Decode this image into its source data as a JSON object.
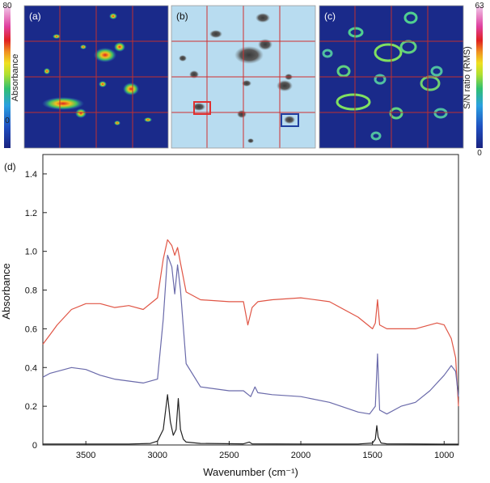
{
  "panels": {
    "a": {
      "label": "(a)"
    },
    "b": {
      "label": "(b)"
    },
    "c": {
      "label": "(c)"
    },
    "d": {
      "label": "(d)"
    }
  },
  "left_colorbar": {
    "label": "Absorbance",
    "max_label": "80",
    "min_label": "0"
  },
  "right_colorbar": {
    "label": "S/N ratio (RMS)",
    "max_label": "63",
    "min_label": "0"
  },
  "colors": {
    "map_background": "#1a2a8a",
    "grid_line": "#d03030",
    "optical_background": "#b8dcf0",
    "red_box": "#e03030",
    "blue_box": "#2040a0",
    "red_spectrum": "#e05545",
    "blue_spectrum": "#6a6aaa",
    "black_spectrum": "#222222"
  },
  "chart_data": {
    "type": "line",
    "title": "",
    "xlabel": "Wavenumber (cm⁻¹)",
    "ylabel": "Absorbance",
    "xlim": [
      3800,
      900
    ],
    "ylim": [
      0,
      1.5
    ],
    "x_ticks": [
      3500,
      3000,
      2500,
      2000,
      1500,
      1000
    ],
    "x_tick_labels": [
      "3500",
      "3000",
      "2500",
      "2000",
      "1500",
      "1000"
    ],
    "y_ticks": [
      0,
      0.2,
      0.4,
      0.6,
      0.8,
      1.0,
      1.2,
      1.4
    ],
    "y_tick_labels": [
      "0",
      "0.2",
      "0.4",
      "0.6",
      "0.8",
      "1.0",
      "1.2",
      "1.4"
    ],
    "series": [
      {
        "color": "#e05545",
        "x": [
          3800,
          3750,
          3700,
          3600,
          3500,
          3400,
          3300,
          3200,
          3100,
          3000,
          2960,
          2930,
          2900,
          2880,
          2860,
          2840,
          2800,
          2700,
          2500,
          2400,
          2370,
          2340,
          2300,
          2200,
          2000,
          1800,
          1600,
          1500,
          1480,
          1465,
          1450,
          1400,
          1200,
          1050,
          1000,
          950,
          920,
          900
        ],
        "y": [
          0.52,
          0.57,
          0.62,
          0.7,
          0.73,
          0.73,
          0.71,
          0.72,
          0.7,
          0.76,
          0.96,
          1.06,
          1.03,
          0.98,
          1.02,
          0.94,
          0.79,
          0.75,
          0.74,
          0.74,
          0.62,
          0.71,
          0.74,
          0.75,
          0.76,
          0.74,
          0.66,
          0.6,
          0.63,
          0.75,
          0.62,
          0.6,
          0.6,
          0.63,
          0.62,
          0.55,
          0.45,
          0.2
        ]
      },
      {
        "color": "#6a6aaa",
        "x": [
          3800,
          3750,
          3700,
          3600,
          3500,
          3400,
          3300,
          3200,
          3100,
          3000,
          2960,
          2930,
          2900,
          2880,
          2860,
          2840,
          2800,
          2700,
          2500,
          2400,
          2350,
          2320,
          2300,
          2200,
          2000,
          1800,
          1600,
          1520,
          1480,
          1465,
          1450,
          1400,
          1300,
          1200,
          1100,
          1000,
          950,
          920,
          900
        ],
        "y": [
          0.35,
          0.37,
          0.38,
          0.4,
          0.39,
          0.36,
          0.34,
          0.33,
          0.32,
          0.34,
          0.65,
          0.98,
          0.92,
          0.78,
          0.93,
          0.8,
          0.42,
          0.3,
          0.28,
          0.28,
          0.25,
          0.3,
          0.27,
          0.26,
          0.25,
          0.22,
          0.17,
          0.16,
          0.2,
          0.47,
          0.18,
          0.16,
          0.2,
          0.22,
          0.28,
          0.36,
          0.41,
          0.38,
          0.25
        ]
      },
      {
        "color": "#222222",
        "x": [
          3800,
          3500,
          3200,
          3050,
          3000,
          2960,
          2930,
          2910,
          2890,
          2870,
          2855,
          2840,
          2820,
          2800,
          2700,
          2400,
          2360,
          2340,
          2000,
          1600,
          1500,
          1480,
          1470,
          1460,
          1440,
          1400,
          1000,
          900
        ],
        "y": [
          0.005,
          0.005,
          0.005,
          0.008,
          0.02,
          0.08,
          0.26,
          0.12,
          0.05,
          0.08,
          0.24,
          0.08,
          0.03,
          0.015,
          0.008,
          0.006,
          0.015,
          0.006,
          0.005,
          0.005,
          0.01,
          0.03,
          0.1,
          0.04,
          0.01,
          0.006,
          0.004,
          0.004
        ]
      }
    ]
  }
}
